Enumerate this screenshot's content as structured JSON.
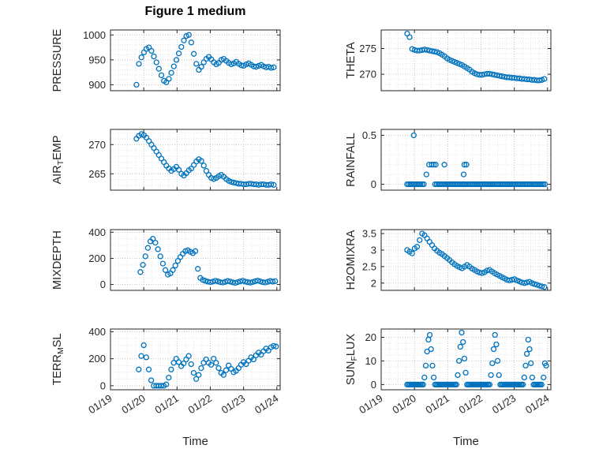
{
  "chart_data": {
    "type": "scatter",
    "title": "Figure 1 medium",
    "xlabel": "Time",
    "marker": {
      "color": "#0072BD",
      "radius": 3,
      "stroke_width": 1.3
    },
    "x_axis": {
      "lim": [
        19,
        24.1
      ],
      "ticks": [
        19,
        20,
        21,
        22,
        23,
        24
      ],
      "tick_labels": [
        "01/19",
        "01/20",
        "01/21",
        "01/22",
        "01/23",
        "01/24"
      ],
      "minor_step": 0.25
    },
    "subplots": [
      {
        "id": "pressure",
        "row": 0,
        "col": 0,
        "ylabel": [
          {
            "t": "PRESSURE"
          }
        ],
        "ylim": [
          888,
          1010
        ],
        "yticks": [
          900,
          950,
          1000
        ],
        "yminor": 10,
        "show_x_labels": false,
        "series": {
          "x0": 19.78,
          "dx": 0.075,
          "y": [
            900,
            942,
            955,
            965,
            972,
            975,
            968,
            957,
            945,
            932,
            919,
            908,
            905,
            912,
            924,
            937,
            950,
            963,
            976,
            989,
            998,
            1000,
            985,
            962,
            942,
            930,
            936,
            945,
            952,
            956,
            951,
            945,
            941,
            944,
            950,
            952,
            948,
            944,
            941,
            943,
            946,
            942,
            939,
            938,
            941,
            943,
            940,
            937,
            936,
            938,
            940,
            937,
            935,
            936,
            934,
            935
          ]
        }
      },
      {
        "id": "theta",
        "row": 0,
        "col": 1,
        "ylabel": [
          {
            "t": "THETA"
          }
        ],
        "ylim": [
          266.8,
          278.6
        ],
        "yticks": [
          270,
          275
        ],
        "yminor": 1,
        "show_x_labels": false,
        "series": {
          "x0": 19.78,
          "dx": 0.075,
          "y": [
            277.9,
            277.2,
            274.9,
            274.7,
            274.6,
            274.6,
            274.7,
            274.8,
            274.7,
            274.6,
            274.5,
            274.4,
            274.3,
            274.1,
            273.8,
            273.5,
            273.1,
            272.8,
            272.6,
            272.4,
            272.2,
            272.0,
            271.8,
            271.5,
            271.2,
            270.9,
            270.5,
            270.2,
            270.0,
            269.9,
            269.9,
            270.0,
            270.1,
            270.1,
            270.0,
            269.9,
            269.8,
            269.7,
            269.6,
            269.5,
            269.4,
            269.4,
            269.3,
            269.3,
            269.2,
            269.2,
            269.1,
            269.1,
            269.0,
            269.0,
            268.9,
            268.9,
            268.8,
            268.8,
            268.9,
            269.1
          ]
        }
      },
      {
        "id": "airtemp",
        "row": 1,
        "col": 0,
        "ylabel": [
          {
            "t": "AIR"
          },
          {
            "t": "T",
            "sub": true
          },
          {
            "t": "EMP"
          }
        ],
        "ylim": [
          262.2,
          272.6
        ],
        "yticks": [
          265,
          270
        ],
        "yminor": 1,
        "show_x_labels": false,
        "series": {
          "x0": 19.78,
          "dx": 0.075,
          "y": [
            271.0,
            271.5,
            271.8,
            271.6,
            271.2,
            270.6,
            270.0,
            269.4,
            268.8,
            268.2,
            267.6,
            267.0,
            266.4,
            265.9,
            265.5,
            265.8,
            266.2,
            265.7,
            265.0,
            264.7,
            265.1,
            265.6,
            265.9,
            266.5,
            267.1,
            267.5,
            267.2,
            266.4,
            265.5,
            264.8,
            264.3,
            264.1,
            264.3,
            264.6,
            264.8,
            264.5,
            264.1,
            263.8,
            263.6,
            263.5,
            263.4,
            263.3,
            263.3,
            263.2,
            263.2,
            263.3,
            263.3,
            263.2,
            263.2,
            263.1,
            263.2,
            263.2,
            263.1,
            263.1,
            263.2,
            263.1
          ]
        }
      },
      {
        "id": "rainfall",
        "row": 1,
        "col": 1,
        "ylabel": [
          {
            "t": "RAINFALL"
          }
        ],
        "ylim": [
          -0.06,
          0.56
        ],
        "yticks": [
          0,
          0.5
        ],
        "yminor": 0.1,
        "show_x_labels": false,
        "series": {
          "points": [
            [
              19.98,
              0.5
            ],
            [
              20.36,
              0.1
            ],
            [
              20.44,
              0.2
            ],
            [
              20.52,
              0.2
            ],
            [
              20.58,
              0.2
            ],
            [
              20.64,
              0.2
            ],
            [
              20.9,
              0.2
            ],
            [
              21.48,
              0.1
            ],
            [
              21.5,
              0.2
            ],
            [
              21.56,
              0.2
            ]
          ],
          "zero_runs": [
            [
              19.78,
              20.3
            ],
            [
              20.62,
              23.95
            ]
          ],
          "zero_step": 0.05
        }
      },
      {
        "id": "mixdepth",
        "row": 2,
        "col": 0,
        "ylabel": [
          {
            "t": "MIXDEPTH"
          }
        ],
        "ylim": [
          -45,
          420
        ],
        "yticks": [
          0,
          200,
          400
        ],
        "yminor": 50,
        "show_x_labels": false,
        "series": {
          "x0": 19.9,
          "dx": 0.075,
          "y": [
            95,
            150,
            215,
            280,
            330,
            350,
            320,
            270,
            215,
            160,
            110,
            75,
            85,
            110,
            145,
            180,
            210,
            235,
            255,
            262,
            250,
            240,
            255,
            120,
            50,
            35,
            28,
            22,
            18,
            22,
            28,
            24,
            18,
            15,
            20,
            26,
            22,
            16,
            12,
            18,
            24,
            28,
            22,
            17,
            14,
            19,
            25,
            30,
            24,
            18,
            15,
            20,
            26,
            22,
            25
          ]
        }
      },
      {
        "id": "h2omixra",
        "row": 2,
        "col": 1,
        "ylabel": [
          {
            "t": "H2OMIXRA"
          }
        ],
        "ylim": [
          1.78,
          3.62
        ],
        "yticks": [
          2,
          2.5,
          3,
          3.5
        ],
        "yminor": 0.1,
        "show_x_labels": false,
        "series": {
          "x0": 19.78,
          "dx": 0.075,
          "y": [
            3.0,
            2.95,
            2.9,
            3.05,
            3.1,
            3.3,
            3.5,
            3.45,
            3.35,
            3.25,
            3.15,
            3.05,
            2.98,
            2.92,
            2.88,
            2.82,
            2.76,
            2.7,
            2.63,
            2.57,
            2.52,
            2.48,
            2.45,
            2.5,
            2.55,
            2.5,
            2.44,
            2.4,
            2.35,
            2.32,
            2.3,
            2.33,
            2.38,
            2.4,
            2.35,
            2.3,
            2.26,
            2.22,
            2.18,
            2.14,
            2.1,
            2.08,
            2.1,
            2.12,
            2.08,
            2.05,
            2.02,
            2.0,
            2.02,
            2.04,
            2.0,
            1.97,
            1.95,
            1.92,
            1.9,
            1.88
          ]
        }
      },
      {
        "id": "terrmsl",
        "row": 3,
        "col": 0,
        "ylabel": [
          {
            "t": "TERR"
          },
          {
            "t": "M",
            "sub": true
          },
          {
            "t": "SL"
          }
        ],
        "ylim": [
          -30,
          420
        ],
        "yticks": [
          0,
          200,
          400
        ],
        "yminor": 50,
        "show_x_labels": true,
        "series": {
          "x0": 19.85,
          "dx": 0.075,
          "y": [
            120,
            220,
            300,
            210,
            120,
            40,
            0,
            0,
            0,
            0,
            0,
            10,
            60,
            120,
            170,
            200,
            175,
            145,
            165,
            195,
            220,
            160,
            95,
            50,
            80,
            130,
            170,
            195,
            170,
            155,
            200,
            170,
            130,
            95,
            80,
            115,
            150,
            125,
            100,
            110,
            130,
            155,
            175,
            160,
            185,
            210,
            195,
            225,
            245,
            230,
            255,
            275,
            260,
            285,
            295,
            290
          ]
        }
      },
      {
        "id": "sunflux",
        "row": 3,
        "col": 1,
        "ylabel": [
          {
            "t": "SUN"
          },
          {
            "t": "F",
            "sub": true
          },
          {
            "t": "LUX"
          }
        ],
        "ylim": [
          -2.2,
          23.5
        ],
        "yticks": [
          0,
          10,
          20
        ],
        "yminor": 2.5,
        "show_x_labels": true,
        "series": {
          "points": [
            [
              20.3,
              3
            ],
            [
              20.34,
              8
            ],
            [
              20.38,
              14
            ],
            [
              20.42,
              19
            ],
            [
              20.46,
              21
            ],
            [
              20.5,
              15
            ],
            [
              20.54,
              8
            ],
            [
              20.58,
              3
            ],
            [
              21.3,
              4
            ],
            [
              21.34,
              10
            ],
            [
              21.38,
              16
            ],
            [
              21.42,
              22
            ],
            [
              21.46,
              18
            ],
            [
              21.5,
              11
            ],
            [
              21.54,
              5
            ],
            [
              22.3,
              4
            ],
            [
              22.34,
              9
            ],
            [
              22.38,
              15
            ],
            [
              22.42,
              21
            ],
            [
              22.46,
              17
            ],
            [
              22.5,
              10
            ],
            [
              22.54,
              4
            ],
            [
              23.3,
              3
            ],
            [
              23.34,
              8
            ],
            [
              23.38,
              13
            ],
            [
              23.42,
              19
            ],
            [
              23.46,
              15
            ],
            [
              23.5,
              9
            ],
            [
              23.54,
              3
            ],
            [
              23.88,
              3
            ],
            [
              23.92,
              9
            ],
            [
              23.96,
              8
            ]
          ],
          "zero_runs": [
            [
              19.78,
              20.26
            ],
            [
              20.62,
              21.26
            ],
            [
              21.58,
              22.26
            ],
            [
              22.58,
              23.26
            ],
            [
              23.58,
              23.84
            ]
          ],
          "zero_step": 0.04
        }
      }
    ]
  }
}
